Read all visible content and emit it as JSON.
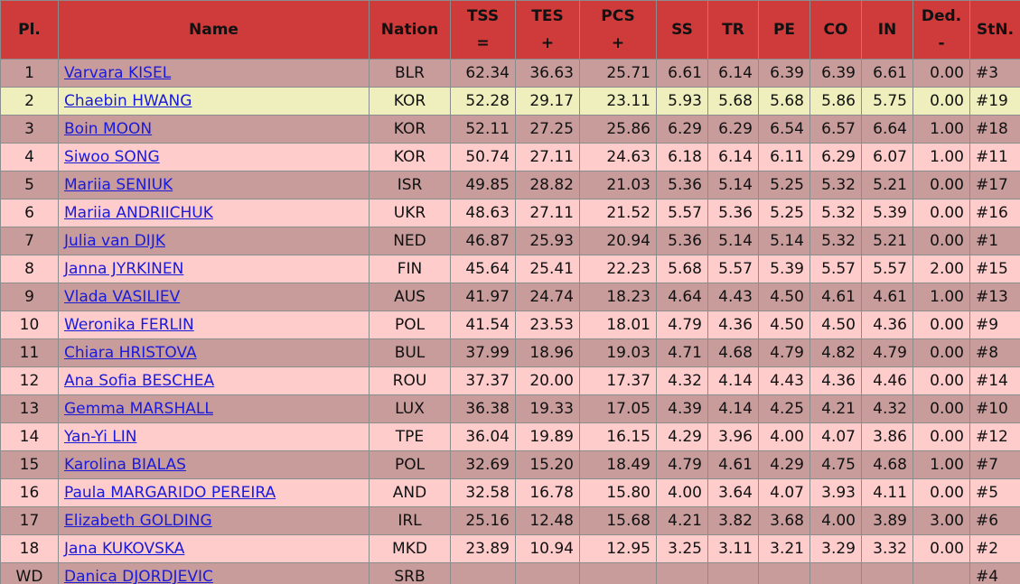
{
  "table": {
    "columns": [
      {
        "label": "Pl."
      },
      {
        "label": "Name"
      },
      {
        "label": "Nation"
      },
      {
        "label": "TSS",
        "sub": "="
      },
      {
        "label": "TES",
        "sub": "+"
      },
      {
        "label": "PCS",
        "sub": "+"
      },
      {
        "label": "SS"
      },
      {
        "label": "TR"
      },
      {
        "label": "PE"
      },
      {
        "label": "CO"
      },
      {
        "label": "IN"
      },
      {
        "label": "Ded.",
        "sub": "-"
      },
      {
        "label": "StN."
      }
    ],
    "rows": [
      [
        "1",
        "Varvara KISEL",
        "BLR",
        "62.34",
        "36.63",
        "25.71",
        "6.61",
        "6.14",
        "6.39",
        "6.39",
        "6.61",
        "0.00",
        "#3"
      ],
      [
        "2",
        "Chaebin HWANG",
        "KOR",
        "52.28",
        "29.17",
        "23.11",
        "5.93",
        "5.68",
        "5.68",
        "5.86",
        "5.75",
        "0.00",
        "#19"
      ],
      [
        "3",
        "Boin MOON",
        "KOR",
        "52.11",
        "27.25",
        "25.86",
        "6.29",
        "6.29",
        "6.54",
        "6.57",
        "6.64",
        "1.00",
        "#18"
      ],
      [
        "4",
        "Siwoo SONG",
        "KOR",
        "50.74",
        "27.11",
        "24.63",
        "6.18",
        "6.14",
        "6.11",
        "6.29",
        "6.07",
        "1.00",
        "#11"
      ],
      [
        "5",
        "Mariia SENIUK",
        "ISR",
        "49.85",
        "28.82",
        "21.03",
        "5.36",
        "5.14",
        "5.25",
        "5.32",
        "5.21",
        "0.00",
        "#17"
      ],
      [
        "6",
        "Mariia ANDRIICHUK",
        "UKR",
        "48.63",
        "27.11",
        "21.52",
        "5.57",
        "5.36",
        "5.25",
        "5.32",
        "5.39",
        "0.00",
        "#16"
      ],
      [
        "7",
        "Julia van DIJK",
        "NED",
        "46.87",
        "25.93",
        "20.94",
        "5.36",
        "5.14",
        "5.14",
        "5.32",
        "5.21",
        "0.00",
        "#1"
      ],
      [
        "8",
        "Janna JYRKINEN",
        "FIN",
        "45.64",
        "25.41",
        "22.23",
        "5.68",
        "5.57",
        "5.39",
        "5.57",
        "5.57",
        "2.00",
        "#15"
      ],
      [
        "9",
        "Vlada VASILIEV",
        "AUS",
        "41.97",
        "24.74",
        "18.23",
        "4.64",
        "4.43",
        "4.50",
        "4.61",
        "4.61",
        "1.00",
        "#13"
      ],
      [
        "10",
        "Weronika FERLIN",
        "POL",
        "41.54",
        "23.53",
        "18.01",
        "4.79",
        "4.36",
        "4.50",
        "4.50",
        "4.36",
        "0.00",
        "#9"
      ],
      [
        "11",
        "Chiara HRISTOVA",
        "BUL",
        "37.99",
        "18.96",
        "19.03",
        "4.71",
        "4.68",
        "4.79",
        "4.82",
        "4.79",
        "0.00",
        "#8"
      ],
      [
        "12",
        "Ana Sofia BESCHEA",
        "ROU",
        "37.37",
        "20.00",
        "17.37",
        "4.32",
        "4.14",
        "4.43",
        "4.36",
        "4.46",
        "0.00",
        "#14"
      ],
      [
        "13",
        "Gemma MARSHALL",
        "LUX",
        "36.38",
        "19.33",
        "17.05",
        "4.39",
        "4.14",
        "4.25",
        "4.21",
        "4.32",
        "0.00",
        "#10"
      ],
      [
        "14",
        "Yan-Yi LIN",
        "TPE",
        "36.04",
        "19.89",
        "16.15",
        "4.29",
        "3.96",
        "4.00",
        "4.07",
        "3.86",
        "0.00",
        "#12"
      ],
      [
        "15",
        "Karolina BIALAS",
        "POL",
        "32.69",
        "15.20",
        "18.49",
        "4.79",
        "4.61",
        "4.29",
        "4.75",
        "4.68",
        "1.00",
        "#7"
      ],
      [
        "16",
        "Paula MARGARIDO PEREIRA",
        "AND",
        "32.58",
        "16.78",
        "15.80",
        "4.00",
        "3.64",
        "4.07",
        "3.93",
        "4.11",
        "0.00",
        "#5"
      ],
      [
        "17",
        "Elizabeth GOLDING",
        "IRL",
        "25.16",
        "12.48",
        "15.68",
        "4.21",
        "3.82",
        "3.68",
        "4.00",
        "3.89",
        "3.00",
        "#6"
      ],
      [
        "18",
        "Jana KUKOVSKA",
        "MKD",
        "23.89",
        "10.94",
        "12.95",
        "3.25",
        "3.11",
        "3.21",
        "3.29",
        "3.32",
        "0.00",
        "#2"
      ],
      [
        "WD",
        "Danica DJORDJEVIC",
        "SRB",
        null,
        null,
        null,
        null,
        null,
        null,
        null,
        null,
        null,
        "#4"
      ]
    ],
    "highlighted_row": 1
  }
}
